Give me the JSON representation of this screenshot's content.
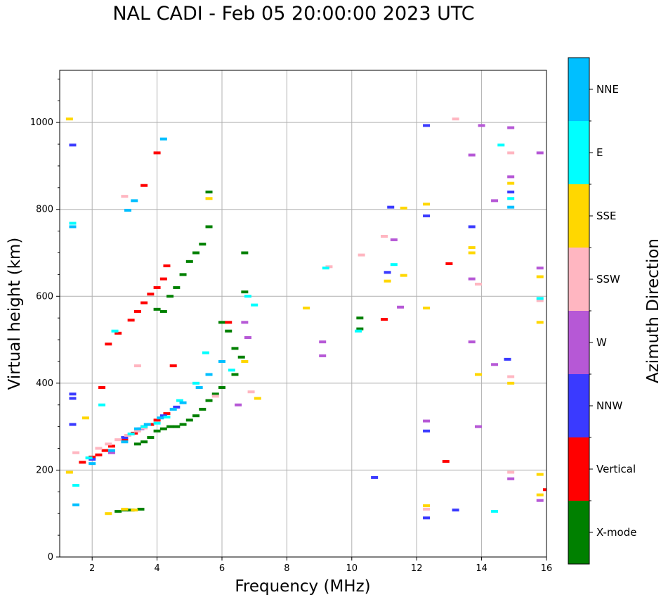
{
  "chart_data": {
    "type": "scatter",
    "title": "NAL CADI - Feb 05 20:00:00 2023 UTC",
    "xlabel": "Frequency (MHz)",
    "ylabel": "Virtual height (km)",
    "xlim": [
      1,
      16
    ],
    "ylim": [
      0,
      1120
    ],
    "xticks": [
      2,
      4,
      6,
      8,
      10,
      12,
      14,
      16
    ],
    "yticks": [
      0,
      200,
      400,
      600,
      800,
      1000
    ],
    "grid": true,
    "colorbar": {
      "label": "Azimuth Direction",
      "categories": [
        {
          "name": "X-mode",
          "color": "#008000"
        },
        {
          "name": "Vertical",
          "color": "#ff0000"
        },
        {
          "name": "NNW",
          "color": "#3a3aff"
        },
        {
          "name": "W",
          "color": "#b658d6"
        },
        {
          "name": "SSW",
          "color": "#ffb6c1"
        },
        {
          "name": "SSE",
          "color": "#ffd700"
        },
        {
          "name": "E",
          "color": "#00ffff"
        },
        {
          "name": "NNE",
          "color": "#00bfff"
        }
      ]
    },
    "series": [
      {
        "name": "X-mode",
        "points": [
          [
            2.8,
            105
          ],
          [
            3.0,
            108
          ],
          [
            3.2,
            108
          ],
          [
            3.5,
            110
          ],
          [
            3.4,
            260
          ],
          [
            3.6,
            265
          ],
          [
            3.8,
            275
          ],
          [
            4.0,
            290
          ],
          [
            4.2,
            295
          ],
          [
            4.4,
            300
          ],
          [
            4.6,
            300
          ],
          [
            4.8,
            305
          ],
          [
            5.0,
            315
          ],
          [
            5.2,
            325
          ],
          [
            5.4,
            340
          ],
          [
            5.6,
            360
          ],
          [
            5.8,
            375
          ],
          [
            6.0,
            390
          ],
          [
            4.0,
            570
          ],
          [
            4.2,
            565
          ],
          [
            4.4,
            600
          ],
          [
            4.6,
            620
          ],
          [
            4.8,
            650
          ],
          [
            5.0,
            680
          ],
          [
            5.2,
            700
          ],
          [
            5.4,
            720
          ],
          [
            5.6,
            760
          ],
          [
            5.6,
            840
          ],
          [
            6.0,
            540
          ],
          [
            6.2,
            520
          ],
          [
            6.4,
            480
          ],
          [
            6.6,
            460
          ],
          [
            6.4,
            420
          ],
          [
            6.7,
            610
          ],
          [
            6.7,
            700
          ],
          [
            10.25,
            550
          ],
          [
            10.25,
            525
          ]
        ]
      },
      {
        "name": "Vertical",
        "points": [
          [
            1.7,
            218
          ],
          [
            2.0,
            230
          ],
          [
            2.2,
            235
          ],
          [
            2.4,
            245
          ],
          [
            2.6,
            255
          ],
          [
            3.0,
            270
          ],
          [
            3.3,
            285
          ],
          [
            3.6,
            300
          ],
          [
            3.8,
            305
          ],
          [
            4.0,
            315
          ],
          [
            4.3,
            330
          ],
          [
            2.5,
            490
          ],
          [
            2.8,
            515
          ],
          [
            3.2,
            545
          ],
          [
            3.4,
            565
          ],
          [
            3.6,
            585
          ],
          [
            3.8,
            605
          ],
          [
            4.0,
            620
          ],
          [
            4.2,
            640
          ],
          [
            4.3,
            670
          ],
          [
            4.0,
            930
          ],
          [
            3.6,
            855
          ],
          [
            2.3,
            390
          ],
          [
            4.5,
            440
          ],
          [
            6.2,
            540
          ],
          [
            11.0,
            547
          ],
          [
            12.9,
            220
          ],
          [
            13.0,
            675
          ],
          [
            16.0,
            155
          ]
        ]
      },
      {
        "name": "NNW",
        "points": [
          [
            1.4,
            375
          ],
          [
            1.4,
            365
          ],
          [
            1.4,
            305
          ],
          [
            1.4,
            948
          ],
          [
            2.0,
            225
          ],
          [
            3.0,
            275
          ],
          [
            4.2,
            325
          ],
          [
            4.6,
            345
          ],
          [
            11.1,
            655
          ],
          [
            11.2,
            805
          ],
          [
            12.3,
            993
          ],
          [
            12.3,
            785
          ],
          [
            12.3,
            290
          ],
          [
            12.3,
            90
          ],
          [
            13.2,
            108
          ],
          [
            10.7,
            183
          ],
          [
            13.7,
            760
          ],
          [
            14.8,
            455
          ],
          [
            14.9,
            840
          ]
        ]
      },
      {
        "name": "W",
        "points": [
          [
            2.6,
            240
          ],
          [
            3.5,
            295
          ],
          [
            6.5,
            350
          ],
          [
            6.7,
            540
          ],
          [
            6.8,
            505
          ],
          [
            9.1,
            495
          ],
          [
            9.1,
            463
          ],
          [
            11.3,
            730
          ],
          [
            11.5,
            575
          ],
          [
            12.3,
            313
          ],
          [
            13.7,
            640
          ],
          [
            13.7,
            925
          ],
          [
            13.7,
            495
          ],
          [
            13.9,
            300
          ],
          [
            14.0,
            993
          ],
          [
            14.4,
            443
          ],
          [
            14.4,
            820
          ],
          [
            14.9,
            988
          ],
          [
            14.9,
            875
          ],
          [
            14.9,
            180
          ],
          [
            15.8,
            930
          ],
          [
            15.8,
            665
          ],
          [
            15.8,
            130
          ]
        ]
      },
      {
        "name": "SSW",
        "points": [
          [
            1.5,
            240
          ],
          [
            2.2,
            250
          ],
          [
            2.5,
            260
          ],
          [
            2.8,
            270
          ],
          [
            3.1,
            280
          ],
          [
            3.4,
            290
          ],
          [
            3.6,
            297
          ],
          [
            3.0,
            830
          ],
          [
            3.4,
            440
          ],
          [
            5.8,
            370
          ],
          [
            6.9,
            380
          ],
          [
            9.3,
            668
          ],
          [
            10.3,
            695
          ],
          [
            11.0,
            738
          ],
          [
            12.3,
            110
          ],
          [
            13.2,
            1008
          ],
          [
            13.9,
            628
          ],
          [
            14.9,
            930
          ],
          [
            14.9,
            415
          ],
          [
            14.9,
            195
          ],
          [
            15.8,
            590
          ]
        ]
      },
      {
        "name": "SSE",
        "points": [
          [
            1.3,
            1008
          ],
          [
            1.3,
            195
          ],
          [
            1.8,
            320
          ],
          [
            2.5,
            100
          ],
          [
            3.0,
            110
          ],
          [
            3.3,
            108
          ],
          [
            5.6,
            825
          ],
          [
            6.7,
            450
          ],
          [
            7.1,
            365
          ],
          [
            8.6,
            573
          ],
          [
            11.1,
            635
          ],
          [
            11.6,
            648
          ],
          [
            11.6,
            803
          ],
          [
            12.3,
            812
          ],
          [
            12.3,
            573
          ],
          [
            12.3,
            118
          ],
          [
            13.7,
            712
          ],
          [
            13.7,
            700
          ],
          [
            13.9,
            420
          ],
          [
            14.9,
            860
          ],
          [
            14.9,
            400
          ],
          [
            15.8,
            645
          ],
          [
            15.8,
            540
          ],
          [
            15.8,
            190
          ],
          [
            15.8,
            143
          ]
        ]
      },
      {
        "name": "E",
        "points": [
          [
            1.4,
            768
          ],
          [
            1.5,
            165
          ],
          [
            1.9,
            228
          ],
          [
            2.3,
            350
          ],
          [
            2.7,
            520
          ],
          [
            3.2,
            283
          ],
          [
            3.6,
            300
          ],
          [
            4.0,
            308
          ],
          [
            4.3,
            322
          ],
          [
            4.7,
            360
          ],
          [
            5.2,
            400
          ],
          [
            5.5,
            470
          ],
          [
            6.3,
            430
          ],
          [
            6.8,
            600
          ],
          [
            7.0,
            580
          ],
          [
            9.2,
            665
          ],
          [
            10.2,
            520
          ],
          [
            11.3,
            673
          ],
          [
            14.4,
            105
          ],
          [
            14.6,
            948
          ],
          [
            14.9,
            825
          ],
          [
            15.8,
            595
          ]
        ]
      },
      {
        "name": "NNE",
        "points": [
          [
            1.4,
            760
          ],
          [
            1.5,
            120
          ],
          [
            2.0,
            215
          ],
          [
            2.6,
            245
          ],
          [
            3.0,
            265
          ],
          [
            3.4,
            295
          ],
          [
            3.7,
            305
          ],
          [
            4.1,
            320
          ],
          [
            4.5,
            340
          ],
          [
            4.8,
            355
          ],
          [
            5.3,
            390
          ],
          [
            5.6,
            420
          ],
          [
            3.1,
            798
          ],
          [
            3.3,
            820
          ],
          [
            4.2,
            962
          ],
          [
            6.0,
            450
          ],
          [
            14.9,
            805
          ]
        ]
      }
    ]
  }
}
